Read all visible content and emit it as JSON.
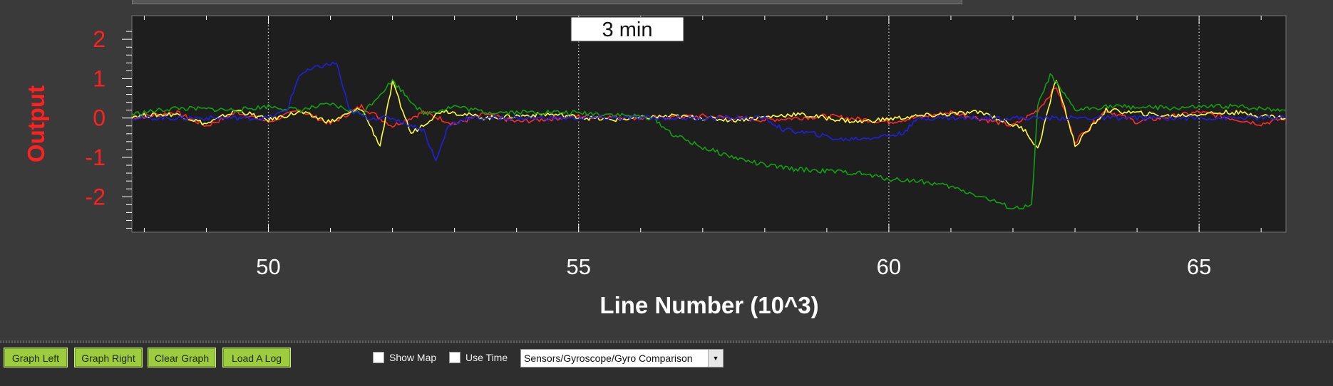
{
  "graph": {
    "time_badge": "3 min",
    "ylabel": "Output",
    "xlabel": "Line Number (10^3)",
    "yticks": [
      "2",
      "1",
      "0",
      "-1",
      "-2"
    ],
    "xticks": [
      "50",
      "55",
      "60",
      "65"
    ]
  },
  "chart_data": {
    "type": "line",
    "xlabel": "Line Number (10^3)",
    "ylabel": "Output",
    "xlim": [
      47.8,
      66.4
    ],
    "ylim": [
      -2.9,
      2.6
    ],
    "grid": "vertical dotted at x ticks",
    "series": [
      {
        "color": "#ff2a2a",
        "points": [
          [
            47.8,
            0
          ],
          [
            48.5,
            0.15
          ],
          [
            49,
            -0.2
          ],
          [
            49.5,
            0.15
          ],
          [
            50,
            -0.1
          ],
          [
            50.5,
            0.2
          ],
          [
            51,
            -0.15
          ],
          [
            51.5,
            0.3
          ],
          [
            52,
            -0.2
          ],
          [
            52.5,
            0.15
          ],
          [
            53,
            -0.15
          ],
          [
            53.5,
            0.1
          ],
          [
            54,
            -0.1
          ],
          [
            55,
            0.05
          ],
          [
            56,
            0
          ],
          [
            57,
            0.05
          ],
          [
            58,
            -0.05
          ],
          [
            59,
            0.05
          ],
          [
            60,
            -0.1
          ],
          [
            61,
            0.15
          ],
          [
            62,
            -0.2
          ],
          [
            62.4,
            0.2
          ],
          [
            62.7,
            0.8
          ],
          [
            63,
            -0.6
          ],
          [
            63.5,
            0.2
          ],
          [
            64,
            -0.1
          ],
          [
            65,
            0.15
          ],
          [
            66,
            -0.15
          ],
          [
            66.4,
            0
          ]
        ]
      },
      {
        "color": "#ffff3a",
        "points": [
          [
            47.8,
            0.05
          ],
          [
            48.5,
            0.1
          ],
          [
            49,
            -0.15
          ],
          [
            49.5,
            0.2
          ],
          [
            50,
            -0.05
          ],
          [
            50.5,
            0.15
          ],
          [
            51,
            -0.1
          ],
          [
            51.5,
            0.25
          ],
          [
            51.8,
            -0.7
          ],
          [
            52,
            0.9
          ],
          [
            52.3,
            -0.4
          ],
          [
            52.8,
            0.2
          ],
          [
            53.5,
            0
          ],
          [
            54.5,
            0.1
          ],
          [
            55.5,
            -0.05
          ],
          [
            56.5,
            0.05
          ],
          [
            57.5,
            -0.05
          ],
          [
            58.5,
            0.1
          ],
          [
            59.5,
            -0.1
          ],
          [
            60.5,
            0.05
          ],
          [
            61.5,
            0.15
          ],
          [
            62.2,
            -0.3
          ],
          [
            62.4,
            -0.8
          ],
          [
            62.7,
            1
          ],
          [
            63,
            -0.7
          ],
          [
            63.5,
            0.2
          ],
          [
            64.5,
            0.05
          ],
          [
            65.5,
            0.15
          ],
          [
            66.4,
            0
          ]
        ]
      },
      {
        "color": "#12a012",
        "points": [
          [
            47.8,
            0.1
          ],
          [
            48.5,
            0.25
          ],
          [
            49.5,
            0.2
          ],
          [
            50,
            0.3
          ],
          [
            50.5,
            0.2
          ],
          [
            51,
            0.35
          ],
          [
            51.5,
            0.1
          ],
          [
            52,
            0.95
          ],
          [
            52.5,
            0.1
          ],
          [
            53,
            0.3
          ],
          [
            53.5,
            0.15
          ],
          [
            54.5,
            0.15
          ],
          [
            55.5,
            0.1
          ],
          [
            56.2,
            0
          ],
          [
            56.5,
            -0.4
          ],
          [
            57,
            -0.75
          ],
          [
            57.5,
            -1
          ],
          [
            58,
            -1.2
          ],
          [
            58.5,
            -1.3
          ],
          [
            59,
            -1.35
          ],
          [
            59.5,
            -1.4
          ],
          [
            60,
            -1.55
          ],
          [
            60.5,
            -1.6
          ],
          [
            61,
            -1.75
          ],
          [
            61.5,
            -2
          ],
          [
            62,
            -2.3
          ],
          [
            62.3,
            -2.25
          ],
          [
            62.4,
            0.3
          ],
          [
            62.6,
            1.1
          ],
          [
            63,
            0.2
          ],
          [
            63.5,
            0.3
          ],
          [
            64.5,
            0.25
          ],
          [
            65.5,
            0.3
          ],
          [
            66.4,
            0.2
          ]
        ]
      },
      {
        "color": "#2020e0",
        "points": [
          [
            47.8,
            0
          ],
          [
            50,
            0
          ],
          [
            50.3,
            0.2
          ],
          [
            50.5,
            1.1
          ],
          [
            50.8,
            1.3
          ],
          [
            51.1,
            1.4
          ],
          [
            51.3,
            0.2
          ],
          [
            51.6,
            0
          ],
          [
            52,
            0
          ],
          [
            52.5,
            -0.3
          ],
          [
            52.7,
            -1.1
          ],
          [
            52.9,
            -0.2
          ],
          [
            53.2,
            0
          ],
          [
            58,
            0
          ],
          [
            58.3,
            -0.3
          ],
          [
            58.8,
            -0.4
          ],
          [
            59.2,
            -0.55
          ],
          [
            59.7,
            -0.5
          ],
          [
            60.2,
            -0.4
          ],
          [
            60.5,
            0
          ],
          [
            66.4,
            0
          ]
        ]
      }
    ]
  },
  "toolbar": {
    "graph_left": "Graph Left",
    "graph_right": "Graph Right",
    "clear_graph": "Clear Graph",
    "load_log": "Load A Log",
    "show_map": "Show Map",
    "use_time": "Use Time",
    "graph_select": "Sensors/Gyroscope/Gyro Comparison"
  }
}
